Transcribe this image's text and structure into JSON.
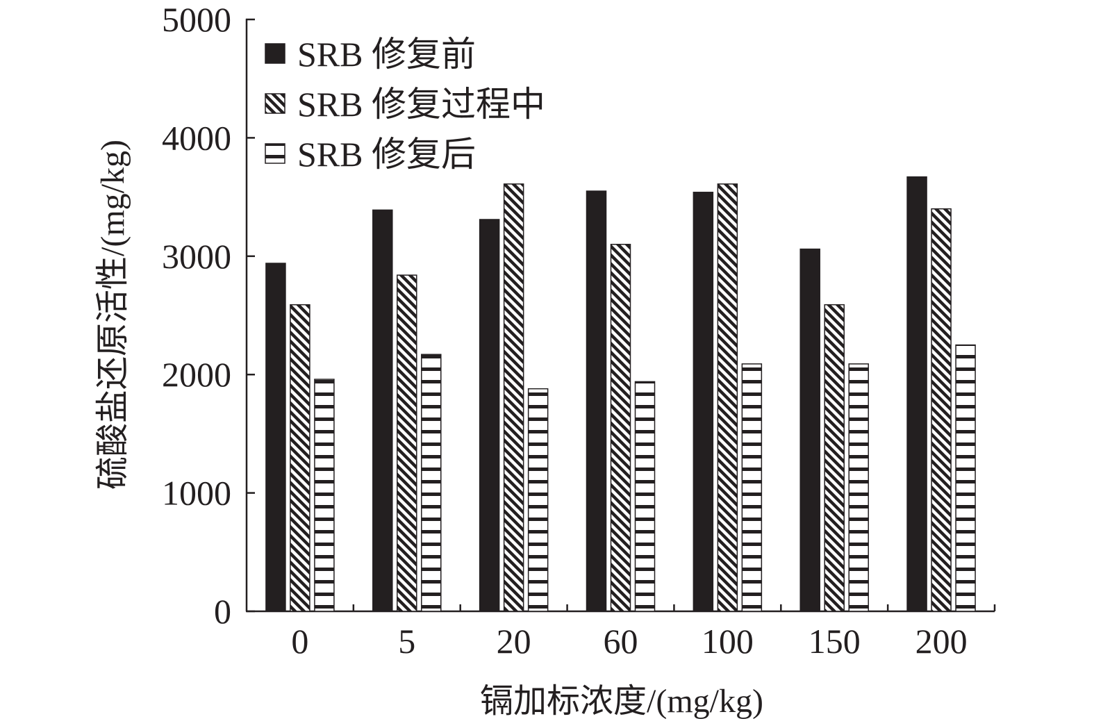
{
  "chart_data": {
    "type": "bar",
    "title": "",
    "xlabel": "镉加标浓度/(mg/kg)",
    "ylabel": "硫酸盐还原活性/(mg/kg)",
    "categories": [
      "0",
      "5",
      "20",
      "60",
      "100",
      "150",
      "200"
    ],
    "ylim": [
      0,
      5000
    ],
    "yticks": [
      "0",
      "1000",
      "2000",
      "3000",
      "4000",
      "5000"
    ],
    "grid": false,
    "legend_position": "top-left",
    "series": [
      {
        "name": "SRB 修复前",
        "pattern": "solid",
        "values": [
          2940,
          3390,
          3310,
          3550,
          3540,
          3060,
          3670
        ]
      },
      {
        "name": "SRB 修复过程中",
        "pattern": "diagonal",
        "values": [
          2590,
          2840,
          3610,
          3100,
          3610,
          2590,
          3400
        ]
      },
      {
        "name": "SRB 修复后",
        "pattern": "horizontal",
        "values": [
          1960,
          2170,
          1880,
          1940,
          2090,
          2090,
          2250
        ]
      }
    ],
    "colors": {
      "ink": "#231f20",
      "background": "#ffffff"
    }
  }
}
